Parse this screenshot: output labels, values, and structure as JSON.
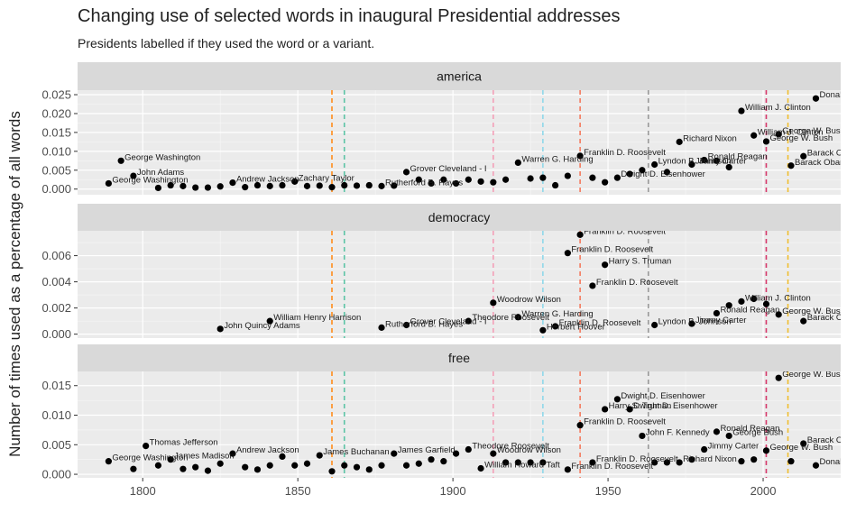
{
  "chart_data": {
    "type": "scatter",
    "title": "Changing use of selected words in inaugural Presidential addresses",
    "subtitle": "Presidents labelled if they used the word or a variant.",
    "xlabel": "",
    "ylabel": "Number of times used as a percentage of all words",
    "x_ticks": [
      1800,
      1850,
      1900,
      1950,
      2000
    ],
    "xlim": [
      1779,
      2025
    ],
    "grid": true,
    "vlines": [
      {
        "x": 1861,
        "color": "#ff8c1a"
      },
      {
        "x": 1865,
        "color": "#5cc4a6"
      },
      {
        "x": 1913,
        "color": "#f4a0b8"
      },
      {
        "x": 1929,
        "color": "#8fd8ea"
      },
      {
        "x": 1941,
        "color": "#f47a5e"
      },
      {
        "x": 1963,
        "color": "#9a9a9a"
      },
      {
        "x": 2001,
        "color": "#d6386a"
      },
      {
        "x": 2008,
        "color": "#f0bd2e"
      }
    ],
    "panels": [
      {
        "strip": "america",
        "ylim": [
          -0.0015,
          0.0262
        ],
        "y_ticks": [
          0.0,
          0.005,
          0.01,
          0.015,
          0.02,
          0.025
        ],
        "y_tick_labels": [
          "0.000",
          "0.005",
          "0.010",
          "0.015",
          "0.020",
          "0.025"
        ],
        "points": [
          {
            "x": 1789,
            "y": 0.0015,
            "label": "George Washington"
          },
          {
            "x": 1793,
            "y": 0.0075,
            "label": "George Washington"
          },
          {
            "x": 1797,
            "y": 0.0035,
            "label": "John Adams"
          },
          {
            "x": 1805,
            "y": 0.0003,
            "label": ""
          },
          {
            "x": 1809,
            "y": 0.001,
            "label": ""
          },
          {
            "x": 1813,
            "y": 0.0008,
            "label": ""
          },
          {
            "x": 1817,
            "y": 0.0004,
            "label": ""
          },
          {
            "x": 1821,
            "y": 0.0004,
            "label": ""
          },
          {
            "x": 1825,
            "y": 0.0007,
            "label": ""
          },
          {
            "x": 1829,
            "y": 0.0017,
            "label": "Andrew Jackson"
          },
          {
            "x": 1833,
            "y": 0.0005,
            "label": ""
          },
          {
            "x": 1837,
            "y": 0.001,
            "label": ""
          },
          {
            "x": 1841,
            "y": 0.0008,
            "label": ""
          },
          {
            "x": 1845,
            "y": 0.001,
            "label": ""
          },
          {
            "x": 1849,
            "y": 0.002,
            "label": "Zachary Taylor"
          },
          {
            "x": 1853,
            "y": 0.0008,
            "label": ""
          },
          {
            "x": 1857,
            "y": 0.0009,
            "label": ""
          },
          {
            "x": 1861,
            "y": 0.0005,
            "label": ""
          },
          {
            "x": 1865,
            "y": 0.001,
            "label": ""
          },
          {
            "x": 1869,
            "y": 0.0009,
            "label": ""
          },
          {
            "x": 1873,
            "y": 0.001,
            "label": ""
          },
          {
            "x": 1877,
            "y": 0.0008,
            "label": "Rutherford B. Hayes"
          },
          {
            "x": 1881,
            "y": 0.0009,
            "label": ""
          },
          {
            "x": 1885,
            "y": 0.0045,
            "label": "Grover Cleveland - I"
          },
          {
            "x": 1889,
            "y": 0.0025,
            "label": ""
          },
          {
            "x": 1893,
            "y": 0.0015,
            "label": ""
          },
          {
            "x": 1897,
            "y": 0.0025,
            "label": ""
          },
          {
            "x": 1901,
            "y": 0.0015,
            "label": ""
          },
          {
            "x": 1905,
            "y": 0.0025,
            "label": ""
          },
          {
            "x": 1909,
            "y": 0.002,
            "label": ""
          },
          {
            "x": 1913,
            "y": 0.0018,
            "label": ""
          },
          {
            "x": 1917,
            "y": 0.0025,
            "label": ""
          },
          {
            "x": 1921,
            "y": 0.007,
            "label": "Warren G. Harding"
          },
          {
            "x": 1925,
            "y": 0.0028,
            "label": ""
          },
          {
            "x": 1929,
            "y": 0.003,
            "label": ""
          },
          {
            "x": 1933,
            "y": 0.001,
            "label": ""
          },
          {
            "x": 1937,
            "y": 0.0035,
            "label": ""
          },
          {
            "x": 1941,
            "y": 0.0088,
            "label": "Franklin D. Roosevelt"
          },
          {
            "x": 1945,
            "y": 0.003,
            "label": ""
          },
          {
            "x": 1949,
            "y": 0.0018,
            "label": ""
          },
          {
            "x": 1953,
            "y": 0.003,
            "label": "Dwight D. Eisenhower"
          },
          {
            "x": 1957,
            "y": 0.004,
            "label": ""
          },
          {
            "x": 1961,
            "y": 0.005,
            "label": ""
          },
          {
            "x": 1965,
            "y": 0.0065,
            "label": "Lyndon B. Johnson"
          },
          {
            "x": 1969,
            "y": 0.0045,
            "label": ""
          },
          {
            "x": 1973,
            "y": 0.0125,
            "label": "Richard Nixon"
          },
          {
            "x": 1977,
            "y": 0.0065,
            "label": "Jimmy Carter"
          },
          {
            "x": 1981,
            "y": 0.0077,
            "label": "Ronald Reagan"
          },
          {
            "x": 1985,
            "y": 0.0075,
            "label": ""
          },
          {
            "x": 1989,
            "y": 0.0058,
            "label": ""
          },
          {
            "x": 1993,
            "y": 0.0207,
            "label": "William J. Clinton"
          },
          {
            "x": 1997,
            "y": 0.0142,
            "label": "William J. Clinton"
          },
          {
            "x": 2001,
            "y": 0.0126,
            "label": "George W. Bush"
          },
          {
            "x": 2005,
            "y": 0.0145,
            "label": "George W. Bush"
          },
          {
            "x": 2009,
            "y": 0.0062,
            "label": "Barack Obama"
          },
          {
            "x": 2013,
            "y": 0.0087,
            "label": "Barack Obama"
          },
          {
            "x": 2017,
            "y": 0.024,
            "label": "Donald J. Trump"
          }
        ]
      },
      {
        "strip": "democracy",
        "ylim": [
          -0.0003,
          0.0079
        ],
        "y_ticks": [
          0.0,
          0.002,
          0.004,
          0.006
        ],
        "y_tick_labels": [
          "0.000",
          "0.002",
          "0.004",
          "0.006"
        ],
        "points": [
          {
            "x": 1825,
            "y": 0.0004,
            "label": "John Quincy Adams"
          },
          {
            "x": 1841,
            "y": 0.001,
            "label": "William Henry Harrison"
          },
          {
            "x": 1877,
            "y": 0.0005,
            "label": "Rutherford B. Hayes"
          },
          {
            "x": 1885,
            "y": 0.0007,
            "label": "Grover Cleveland - I"
          },
          {
            "x": 1905,
            "y": 0.001,
            "label": "Theodore Roosevelt"
          },
          {
            "x": 1913,
            "y": 0.0024,
            "label": "Woodrow Wilson"
          },
          {
            "x": 1921,
            "y": 0.0013,
            "label": "Warren G. Harding"
          },
          {
            "x": 1929,
            "y": 0.0003,
            "label": "Herbert Hoover"
          },
          {
            "x": 1933,
            "y": 0.0006,
            "label": "Franklin D. Roosevelt"
          },
          {
            "x": 1937,
            "y": 0.0062,
            "label": "Franklin D. Roosevelt"
          },
          {
            "x": 1941,
            "y": 0.0076,
            "label": "Franklin D. Roosevelt"
          },
          {
            "x": 1945,
            "y": 0.0037,
            "label": "Franklin D. Roosevelt"
          },
          {
            "x": 1949,
            "y": 0.0053,
            "label": "Harry S. Truman"
          },
          {
            "x": 1965,
            "y": 0.0007,
            "label": "Lyndon B. Johnson"
          },
          {
            "x": 1977,
            "y": 0.0008,
            "label": "Jimmy Carter"
          },
          {
            "x": 1985,
            "y": 0.0016,
            "label": "Ronald Reagan"
          },
          {
            "x": 1989,
            "y": 0.0022,
            "label": ""
          },
          {
            "x": 1993,
            "y": 0.0025,
            "label": "William J. Clinton"
          },
          {
            "x": 1997,
            "y": 0.0027,
            "label": ""
          },
          {
            "x": 2001,
            "y": 0.0023,
            "label": ""
          },
          {
            "x": 2005,
            "y": 0.0015,
            "label": "George W. Bush"
          },
          {
            "x": 2013,
            "y": 0.001,
            "label": "Barack Obama"
          }
        ]
      },
      {
        "strip": "free",
        "ylim": [
          -0.0006,
          0.0174
        ],
        "y_ticks": [
          0.0,
          0.005,
          0.01,
          0.015
        ],
        "y_tick_labels": [
          "0.000",
          "0.005",
          "0.010",
          "0.015"
        ],
        "points": [
          {
            "x": 1789,
            "y": 0.0022,
            "label": "George Washington"
          },
          {
            "x": 1797,
            "y": 0.0009,
            "label": ""
          },
          {
            "x": 1801,
            "y": 0.0048,
            "label": "Thomas Jefferson"
          },
          {
            "x": 1805,
            "y": 0.0015,
            "label": ""
          },
          {
            "x": 1809,
            "y": 0.0025,
            "label": "James Madison"
          },
          {
            "x": 1813,
            "y": 0.0009,
            "label": ""
          },
          {
            "x": 1817,
            "y": 0.0012,
            "label": ""
          },
          {
            "x": 1821,
            "y": 0.0006,
            "label": ""
          },
          {
            "x": 1825,
            "y": 0.0018,
            "label": ""
          },
          {
            "x": 1829,
            "y": 0.0035,
            "label": "Andrew Jackson"
          },
          {
            "x": 1833,
            "y": 0.0012,
            "label": ""
          },
          {
            "x": 1837,
            "y": 0.0008,
            "label": ""
          },
          {
            "x": 1841,
            "y": 0.0015,
            "label": ""
          },
          {
            "x": 1845,
            "y": 0.003,
            "label": ""
          },
          {
            "x": 1849,
            "y": 0.0015,
            "label": ""
          },
          {
            "x": 1853,
            "y": 0.0018,
            "label": ""
          },
          {
            "x": 1857,
            "y": 0.0032,
            "label": "James Buchanan"
          },
          {
            "x": 1861,
            "y": 0.0005,
            "label": ""
          },
          {
            "x": 1865,
            "y": 0.0015,
            "label": ""
          },
          {
            "x": 1869,
            "y": 0.0012,
            "label": ""
          },
          {
            "x": 1873,
            "y": 0.0008,
            "label": ""
          },
          {
            "x": 1877,
            "y": 0.0015,
            "label": ""
          },
          {
            "x": 1881,
            "y": 0.0035,
            "label": "James Garfield"
          },
          {
            "x": 1885,
            "y": 0.0015,
            "label": ""
          },
          {
            "x": 1889,
            "y": 0.0018,
            "label": ""
          },
          {
            "x": 1893,
            "y": 0.0025,
            "label": ""
          },
          {
            "x": 1897,
            "y": 0.0022,
            "label": ""
          },
          {
            "x": 1901,
            "y": 0.0035,
            "label": ""
          },
          {
            "x": 1905,
            "y": 0.0042,
            "label": "Theodore Roosevelt"
          },
          {
            "x": 1909,
            "y": 0.001,
            "label": "William Howard Taft"
          },
          {
            "x": 1913,
            "y": 0.0035,
            "label": "Woodrow Wilson"
          },
          {
            "x": 1917,
            "y": 0.002,
            "label": ""
          },
          {
            "x": 1921,
            "y": 0.002,
            "label": ""
          },
          {
            "x": 1925,
            "y": 0.002,
            "label": ""
          },
          {
            "x": 1929,
            "y": 0.002,
            "label": ""
          },
          {
            "x": 1937,
            "y": 0.0008,
            "label": "Franklin D. Roosevelt"
          },
          {
            "x": 1941,
            "y": 0.0083,
            "label": "Franklin D. Roosevelt"
          },
          {
            "x": 1945,
            "y": 0.002,
            "label": "Franklin D. Roosevelt"
          },
          {
            "x": 1949,
            "y": 0.011,
            "label": "Harry S. Truman"
          },
          {
            "x": 1953,
            "y": 0.0127,
            "label": "Dwight D. Eisenhower"
          },
          {
            "x": 1957,
            "y": 0.011,
            "label": "Dwight D. Eisenhower"
          },
          {
            "x": 1961,
            "y": 0.0065,
            "label": "John F. Kennedy"
          },
          {
            "x": 1965,
            "y": 0.002,
            "label": ""
          },
          {
            "x": 1969,
            "y": 0.002,
            "label": ""
          },
          {
            "x": 1973,
            "y": 0.002,
            "label": "Richard Nixon"
          },
          {
            "x": 1977,
            "y": 0.0025,
            "label": ""
          },
          {
            "x": 1981,
            "y": 0.0042,
            "label": "Jimmy Carter"
          },
          {
            "x": 1985,
            "y": 0.0072,
            "label": "Ronald Reagan"
          },
          {
            "x": 1989,
            "y": 0.0065,
            "label": "George Bush"
          },
          {
            "x": 1993,
            "y": 0.0022,
            "label": ""
          },
          {
            "x": 1997,
            "y": 0.0025,
            "label": ""
          },
          {
            "x": 2001,
            "y": 0.004,
            "label": "George W. Bush"
          },
          {
            "x": 2005,
            "y": 0.0163,
            "label": "George W. Bush"
          },
          {
            "x": 2009,
            "y": 0.0022,
            "label": ""
          },
          {
            "x": 2013,
            "y": 0.0052,
            "label": "Barack Obama"
          },
          {
            "x": 2017,
            "y": 0.0015,
            "label": "Donald J. Trump"
          }
        ]
      }
    ]
  }
}
